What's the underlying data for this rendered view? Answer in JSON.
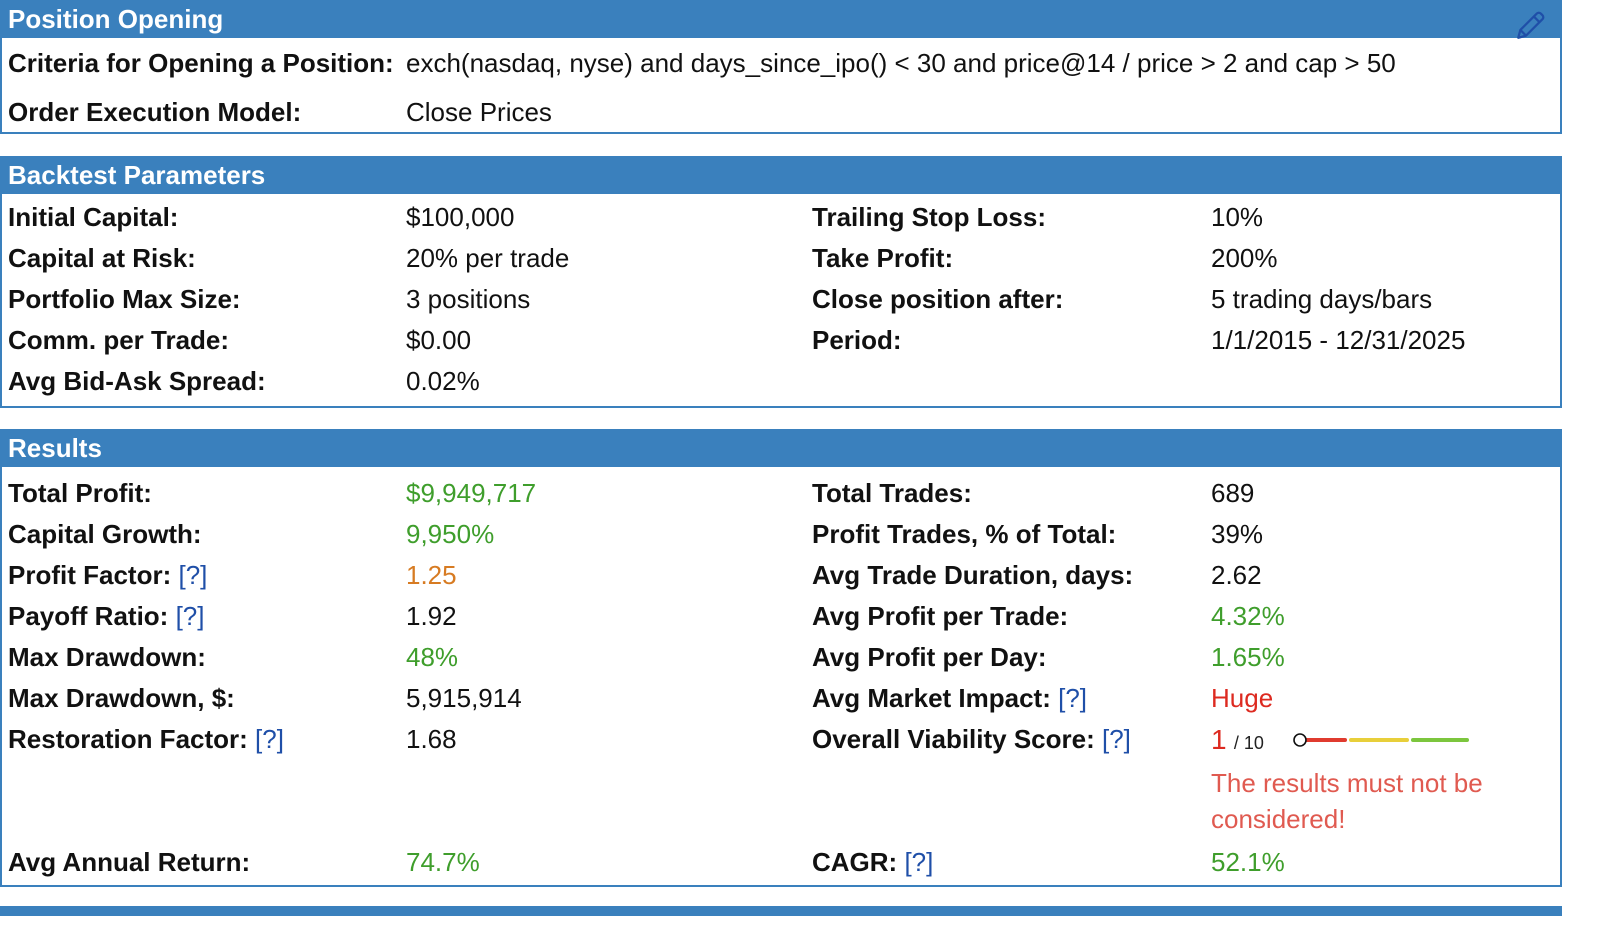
{
  "position_opening": {
    "title": "Position Opening",
    "criteria_label": "Criteria for Opening a Position:",
    "criteria_value": "exch(nasdaq, nyse) and days_since_ipo() < 30 and price@14 / price > 2 and cap > 50",
    "execution_label": "Order Execution Model:",
    "execution_value": "Close Prices",
    "edit_icon": "pencil-icon"
  },
  "backtest": {
    "title": "Backtest Parameters",
    "left": [
      {
        "label": "Initial Capital:",
        "value": "$100,000"
      },
      {
        "label": "Capital at Risk:",
        "value": "20% per trade"
      },
      {
        "label": "Portfolio Max Size:",
        "value": "3 positions"
      },
      {
        "label": "Comm. per Trade:",
        "value": "$0.00"
      },
      {
        "label": "Avg Bid-Ask Spread:",
        "value": "0.02%"
      }
    ],
    "right": [
      {
        "label": "Trailing Stop Loss:",
        "value": "10%"
      },
      {
        "label": "Take Profit:",
        "value": "200%"
      },
      {
        "label": "Close position after:",
        "value": "5 trading days/bars"
      },
      {
        "label": "Period:",
        "value": "1/1/2015 - 12/31/2025"
      }
    ]
  },
  "results": {
    "title": "Results",
    "help_text": "[?]",
    "left": [
      {
        "label": "Total Profit:",
        "value": "$9,949,717"
      },
      {
        "label": "Capital Growth:",
        "value": "9,950%"
      },
      {
        "label": "Profit Factor:",
        "value": "1.25"
      },
      {
        "label": "Payoff Ratio:",
        "value": "1.92"
      },
      {
        "label": "Max Drawdown:",
        "value": "48%"
      },
      {
        "label": "Max Drawdown, $:",
        "value": "5,915,914"
      },
      {
        "label": "Restoration Factor:",
        "value": "1.68"
      }
    ],
    "right": [
      {
        "label": "Total Trades:",
        "value": "689"
      },
      {
        "label": "Profit Trades, % of Total:",
        "value": "39%"
      },
      {
        "label": "Avg Trade Duration, days:",
        "value": "2.62"
      },
      {
        "label": "Avg Profit per Trade:",
        "value": "4.32%"
      },
      {
        "label": "Avg Profit per Day:",
        "value": "1.65%"
      },
      {
        "label": "Avg Market Impact:",
        "value": "Huge"
      }
    ],
    "viability": {
      "label": "Overall Viability Score:",
      "score": "1",
      "scale": "/ 10",
      "score_fraction": 0.1,
      "warning_line1": "The results must not be",
      "warning_line2": "considered!"
    },
    "avg_annual_return": {
      "label": "Avg Annual Return:",
      "value": "74.7%"
    },
    "cagr": {
      "label": "CAGR:",
      "value": "52.1%"
    }
  },
  "colors": {
    "accent": "#3a80bd",
    "positive": "#3f9e2c",
    "caution": "#d77b22",
    "negative": "#dd2a20",
    "link": "#1f4fa8"
  }
}
